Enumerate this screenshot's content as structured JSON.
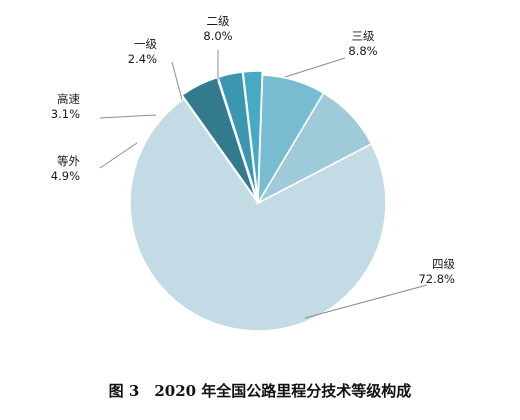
{
  "chart_data": {
    "type": "pie",
    "title": "图 3　2020 年全国公路里程分技术等级构成",
    "slices": [
      {
        "name": "四级",
        "value": 72.8,
        "label": "72.8%",
        "color": "#c2dbe4"
      },
      {
        "name": "等外",
        "value": 4.9,
        "label": "4.9%",
        "color": "#327a8d"
      },
      {
        "name": "高速",
        "value": 3.1,
        "label": "3.1%",
        "color": "#3b97af"
      },
      {
        "name": "一级",
        "value": 2.4,
        "label": "2.4%",
        "color": "#48a9c4"
      },
      {
        "name": "二级",
        "value": 8.0,
        "label": "8.0%",
        "color": "#77bcd1"
      },
      {
        "name": "三级",
        "value": 8.8,
        "label": "8.8%",
        "color": "#9fcad9"
      }
    ],
    "legend": "none"
  }
}
